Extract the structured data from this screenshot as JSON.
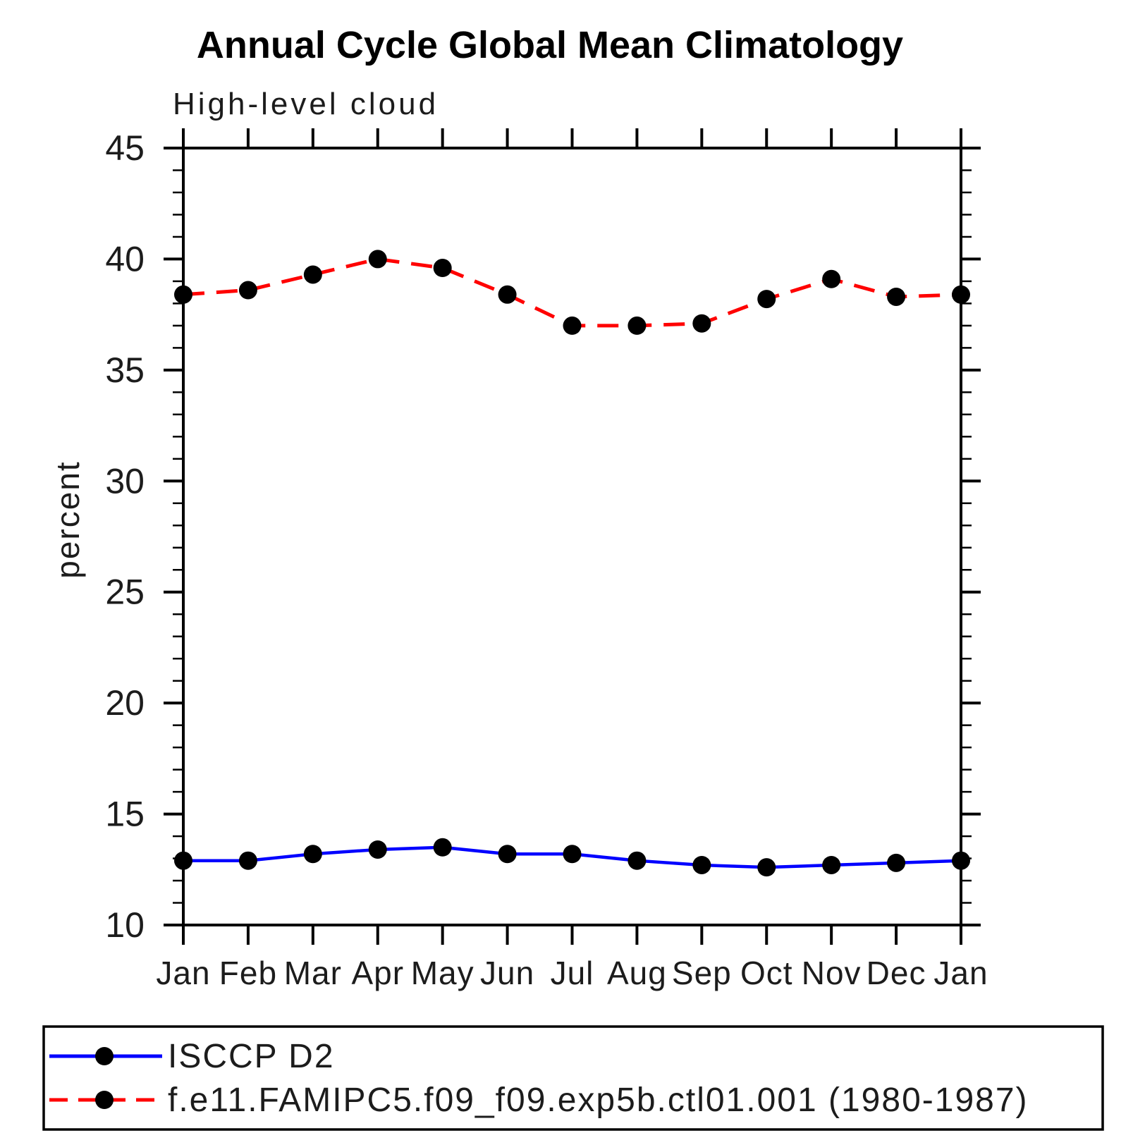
{
  "chart_data": {
    "type": "line",
    "title": "Annual Cycle Global Mean Climatology",
    "subtitle": "High-level cloud",
    "ylabel": "percent",
    "xlabel": "",
    "x_tick_labels": [
      "Jan",
      "Feb",
      "Mar",
      "Apr",
      "May",
      "Jun",
      "Jul",
      "Aug",
      "Sep",
      "Oct",
      "Nov",
      "Dec",
      "Jan"
    ],
    "ylim": [
      10,
      45
    ],
    "y_major_ticks": [
      10,
      15,
      20,
      25,
      30,
      35,
      40,
      45
    ],
    "y_minor_step": 1,
    "grid": false,
    "legend_position": "bottom-left-box",
    "frame_color": "#000000",
    "marker": "filled-circle",
    "marker_color": "#000000",
    "series": [
      {
        "name": "ISCCP D2",
        "color": "#0000ff",
        "style": "solid",
        "values": [
          12.9,
          12.9,
          13.2,
          13.4,
          13.5,
          13.2,
          13.2,
          12.9,
          12.7,
          12.6,
          12.7,
          12.8,
          12.9
        ]
      },
      {
        "name": "f.e11.FAMIPC5.f09_f09.exp5b.ctl01.001 (1980-1987)",
        "color": "#ff0000",
        "style": "dashed",
        "values": [
          38.4,
          38.6,
          39.3,
          40.0,
          39.6,
          38.4,
          37.0,
          37.0,
          37.1,
          38.2,
          39.1,
          38.3,
          38.4
        ]
      }
    ]
  }
}
